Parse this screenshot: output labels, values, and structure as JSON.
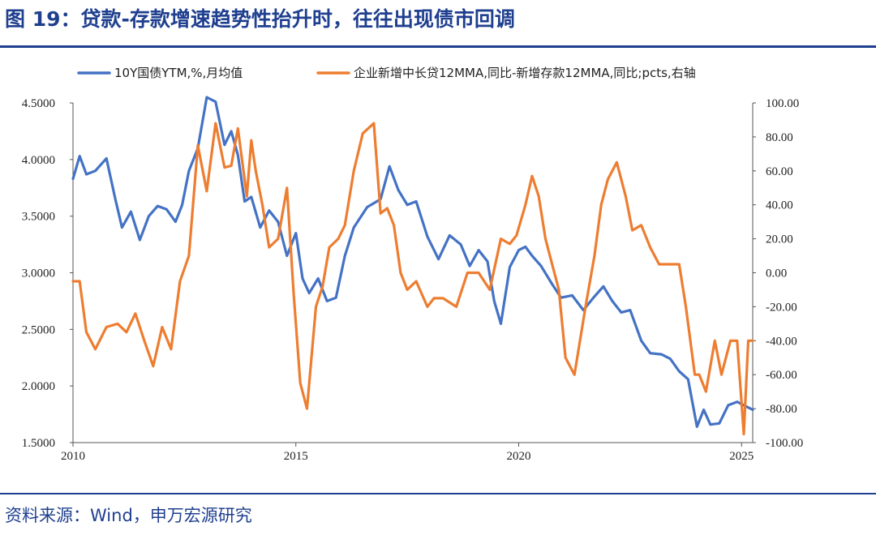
{
  "title": "图 19：贷款-存款增速趋势性抬升时，往往出现债市回调",
  "source": "资料来源：Wind，申万宏源研究",
  "chart_data": {
    "type": "line",
    "title": "图 19：贷款-存款增速趋势性抬升时，往往出现债市回调",
    "xlabel": "",
    "xlim": [
      2010,
      2025.25
    ],
    "x_ticks": [
      2010,
      2015,
      2020,
      2025
    ],
    "y_left": {
      "lim": [
        1.5,
        4.5
      ],
      "ticks": [
        1.5,
        2.0,
        2.5,
        3.0,
        3.5,
        4.0,
        4.5
      ],
      "tick_labels": [
        "1.5000",
        "2.0000",
        "2.5000",
        "3.0000",
        "3.5000",
        "4.0000",
        "4.5000"
      ]
    },
    "y_right": {
      "lim": [
        -100,
        100
      ],
      "ticks": [
        -100,
        -80,
        -60,
        -40,
        -20,
        0,
        20,
        40,
        60,
        80,
        100
      ],
      "tick_labels": [
        "-100.00",
        "-80.00",
        "-60.00",
        "-40.00",
        "-20.00",
        "0.00",
        "20.00",
        "40.00",
        "60.00",
        "80.00",
        "100.00"
      ]
    },
    "legend_position": "top",
    "series": [
      {
        "name": "10Y国债YTM,%,月均值",
        "axis": "left",
        "color": "#4472c4",
        "x": [
          2010.0,
          2010.15,
          2010.3,
          2010.5,
          2010.75,
          2010.95,
          2011.1,
          2011.3,
          2011.5,
          2011.7,
          2011.9,
          2012.1,
          2012.3,
          2012.45,
          2012.6,
          2012.8,
          2013.0,
          2013.2,
          2013.4,
          2013.55,
          2013.7,
          2013.85,
          2014.0,
          2014.2,
          2014.4,
          2014.6,
          2014.8,
          2015.0,
          2015.15,
          2015.3,
          2015.5,
          2015.7,
          2015.9,
          2016.1,
          2016.3,
          2016.6,
          2016.9,
          2017.1,
          2017.3,
          2017.5,
          2017.7,
          2017.95,
          2018.2,
          2018.45,
          2018.7,
          2018.9,
          2019.1,
          2019.3,
          2019.45,
          2019.6,
          2019.8,
          2020.0,
          2020.15,
          2020.3,
          2020.5,
          2020.75,
          2020.95,
          2021.2,
          2021.45,
          2021.7,
          2021.9,
          2022.1,
          2022.3,
          2022.5,
          2022.75,
          2022.95,
          2023.2,
          2023.4,
          2023.6,
          2023.8,
          2024.0,
          2024.15,
          2024.3,
          2024.5,
          2024.7,
          2024.9,
          2025.1,
          2025.25
        ],
        "values": [
          3.83,
          4.03,
          3.87,
          3.9,
          4.01,
          3.65,
          3.4,
          3.54,
          3.29,
          3.5,
          3.59,
          3.56,
          3.45,
          3.6,
          3.9,
          4.1,
          4.55,
          4.51,
          4.13,
          4.25,
          4.04,
          3.63,
          3.67,
          3.4,
          3.55,
          3.45,
          3.15,
          3.35,
          2.95,
          2.82,
          2.95,
          2.75,
          2.78,
          3.15,
          3.4,
          3.58,
          3.65,
          3.94,
          3.73,
          3.6,
          3.63,
          3.32,
          3.12,
          3.33,
          3.25,
          3.06,
          3.2,
          3.1,
          2.75,
          2.55,
          3.05,
          3.2,
          3.23,
          3.15,
          3.06,
          2.9,
          2.78,
          2.8,
          2.67,
          2.79,
          2.88,
          2.75,
          2.65,
          2.67,
          2.4,
          2.29,
          2.28,
          2.24,
          2.13,
          2.06,
          1.64,
          1.79,
          1.66,
          1.67,
          1.83,
          1.86,
          1.82,
          1.79
        ]
      },
      {
        "name": "企业新增中长贷12MMA,同比-新增存款12MMA,同比;pcts,右轴",
        "axis": "right",
        "color": "#ed7d31",
        "x": [
          2010.0,
          2010.15,
          2010.3,
          2010.5,
          2010.75,
          2011.0,
          2011.2,
          2011.4,
          2011.6,
          2011.8,
          2012.0,
          2012.2,
          2012.4,
          2012.6,
          2012.8,
          2013.0,
          2013.2,
          2013.4,
          2013.55,
          2013.7,
          2013.9,
          2014.0,
          2014.1,
          2014.25,
          2014.4,
          2014.6,
          2014.8,
          2014.95,
          2015.1,
          2015.25,
          2015.45,
          2015.6,
          2015.75,
          2015.95,
          2016.1,
          2016.3,
          2016.5,
          2016.75,
          2016.9,
          2017.05,
          2017.2,
          2017.35,
          2017.5,
          2017.7,
          2017.95,
          2018.1,
          2018.3,
          2018.6,
          2018.85,
          2019.1,
          2019.35,
          2019.6,
          2019.8,
          2019.95,
          2020.15,
          2020.3,
          2020.45,
          2020.6,
          2020.75,
          2020.9,
          2021.05,
          2021.25,
          2021.5,
          2021.7,
          2021.85,
          2022.0,
          2022.2,
          2022.4,
          2022.55,
          2022.75,
          2022.95,
          2023.15,
          2023.4,
          2023.6,
          2023.75,
          2023.95,
          2024.05,
          2024.2,
          2024.4,
          2024.55,
          2024.75,
          2024.9,
          2025.05,
          2025.15,
          2025.25
        ],
        "values": [
          -5,
          -5,
          -35,
          -45,
          -32,
          -30,
          -35,
          -24,
          -40,
          -55,
          -32,
          -45,
          -5,
          10,
          75,
          48,
          88,
          62,
          63,
          85,
          45,
          78,
          60,
          40,
          15,
          20,
          50,
          -12,
          -65,
          -80,
          -20,
          -8,
          15,
          20,
          28,
          60,
          82,
          88,
          35,
          38,
          28,
          0,
          -10,
          -5,
          -20,
          -15,
          -15,
          -20,
          0,
          0,
          -10,
          20,
          17,
          22,
          40,
          57,
          45,
          20,
          5,
          -10,
          -50,
          -60,
          -20,
          10,
          40,
          55,
          65,
          45,
          25,
          28,
          15,
          5,
          5,
          5,
          -20,
          -60,
          -60,
          -70,
          -40,
          -60,
          -40,
          -40,
          -95,
          -40,
          -40
        ]
      }
    ]
  }
}
